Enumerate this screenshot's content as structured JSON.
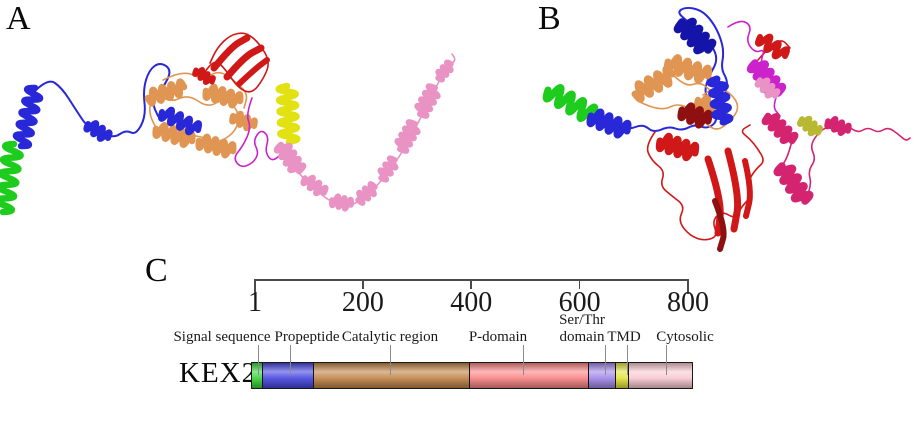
{
  "panels": {
    "a_label": "A",
    "b_label": "B",
    "c_label": "C"
  },
  "panel_c": {
    "protein_name": "KEX2",
    "axis": {
      "tick_values": [
        1,
        200,
        400,
        600,
        800
      ],
      "tick_labels": [
        "1",
        "200",
        "400",
        "600",
        "800"
      ],
      "range_min": 1,
      "range_max": 814
    },
    "domains": [
      {
        "name": "Signal sequence",
        "start": 1,
        "end": 21,
        "color": "#3bd23b"
      },
      {
        "name": "Propeptide",
        "start": 22,
        "end": 114,
        "color": "#4646e0"
      },
      {
        "name": "Catalytic region",
        "start": 115,
        "end": 404,
        "color": "#c08447"
      },
      {
        "name": "P-domain",
        "start": 405,
        "end": 624,
        "color": "#f98585"
      },
      {
        "name": "Ser/Thr domain",
        "line1": "Ser/Thr",
        "line2": "domain",
        "start": 625,
        "end": 674,
        "color": "#a288e8"
      },
      {
        "name": "TMD",
        "start": 675,
        "end": 698,
        "color": "#e3e33e"
      },
      {
        "name": "Cytosolic",
        "start": 699,
        "end": 814,
        "color": "#f9c9d1"
      }
    ]
  },
  "ribbon_colors": {
    "green": "#1ecc1e",
    "blue": "#2828d8",
    "darkblue": "#1414a8",
    "tan": "#e09552",
    "red": "#d01818",
    "darkred": "#8e1010",
    "magenta": "#cc22cc",
    "crimson": "#d42470",
    "yellow": "#e2e212",
    "olive": "#b8b832",
    "pink": "#e893c3"
  }
}
